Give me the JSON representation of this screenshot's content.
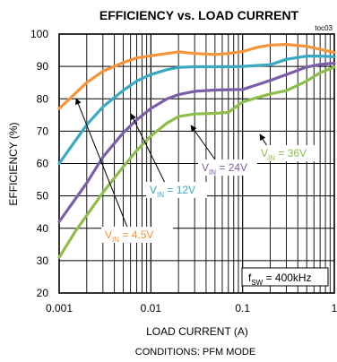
{
  "chart_data": {
    "type": "line",
    "title": "EFFICIENCY vs. LOAD CURRENT",
    "figure_id": "toc03",
    "xlabel": "LOAD CURRENT  (A)",
    "ylabel": "EFFICIENCY (%)",
    "x_scale": "log",
    "xlim": [
      0.001,
      1
    ],
    "ylim": [
      20,
      100
    ],
    "x_ticks": [
      "0.001",
      "0.01",
      "0.1",
      "1"
    ],
    "y_ticks": [
      "20",
      "30",
      "40",
      "50",
      "60",
      "70",
      "80",
      "90",
      "100"
    ],
    "grid": true,
    "conditions": "CONDITIONS:  PFM MODE",
    "fsw_label": {
      "main": "f",
      "sub": "SW",
      "rest": " = 400kHz"
    },
    "series": [
      {
        "name": "VIN = 4.5V",
        "label": {
          "main": "V",
          "sub": "IN",
          "rest": " = 4.5V"
        },
        "color": "#f7943a",
        "x": [
          0.001,
          0.0013,
          0.002,
          0.003,
          0.005,
          0.007,
          0.01,
          0.015,
          0.02,
          0.03,
          0.05,
          0.07,
          0.1,
          0.15,
          0.2,
          0.3,
          0.5,
          0.7,
          1
        ],
        "y": [
          77,
          80,
          85,
          88.5,
          91.2,
          92.6,
          93.3,
          94,
          94.5,
          94,
          93.7,
          94,
          94.6,
          96,
          96.6,
          96.8,
          96.2,
          95.3,
          94.3
        ]
      },
      {
        "name": "VIN = 12V",
        "label": {
          "main": "V",
          "sub": "IN",
          "rest": " = 12V"
        },
        "color": "#39a9c3",
        "x": [
          0.001,
          0.0015,
          0.002,
          0.003,
          0.005,
          0.007,
          0.01,
          0.015,
          0.02,
          0.03,
          0.05,
          0.07,
          0.1,
          0.15,
          0.2,
          0.3,
          0.5,
          0.7,
          1
        ],
        "y": [
          60,
          67,
          72,
          77.5,
          82.6,
          85.5,
          87.5,
          89,
          89.7,
          89.9,
          89.9,
          89.9,
          90,
          90.3,
          90.5,
          92.2,
          93.2,
          93.2,
          93
        ],
        "annotations": []
      },
      {
        "name": "VIN = 24V",
        "label": {
          "main": "V",
          "sub": "IN",
          "rest": " = 24V"
        },
        "color": "#7b5ea8",
        "x": [
          0.001,
          0.0015,
          0.002,
          0.003,
          0.005,
          0.007,
          0.01,
          0.015,
          0.02,
          0.03,
          0.05,
          0.07,
          0.1,
          0.15,
          0.2,
          0.3,
          0.5,
          0.7,
          1
        ],
        "y": [
          42,
          49,
          54,
          62,
          69.5,
          73.5,
          77,
          80,
          81.3,
          82.3,
          82.7,
          82.8,
          82.9,
          84.5,
          85.7,
          87.5,
          89.8,
          90.6,
          91
        ]
      },
      {
        "name": "VIN = 36V",
        "label": {
          "main": "V",
          "sub": "IN",
          "rest": " = 36V"
        },
        "color": "#8dbd4a",
        "x": [
          0.001,
          0.0015,
          0.002,
          0.003,
          0.005,
          0.007,
          0.01,
          0.015,
          0.02,
          0.03,
          0.05,
          0.07,
          0.1,
          0.15,
          0.2,
          0.3,
          0.5,
          0.7,
          1
        ],
        "y": [
          31,
          39,
          44,
          51,
          59,
          64,
          68.5,
          72.5,
          74.5,
          75.3,
          75.5,
          75.8,
          79,
          80.5,
          81.5,
          82.5,
          85.5,
          88,
          89.8
        ]
      }
    ]
  }
}
